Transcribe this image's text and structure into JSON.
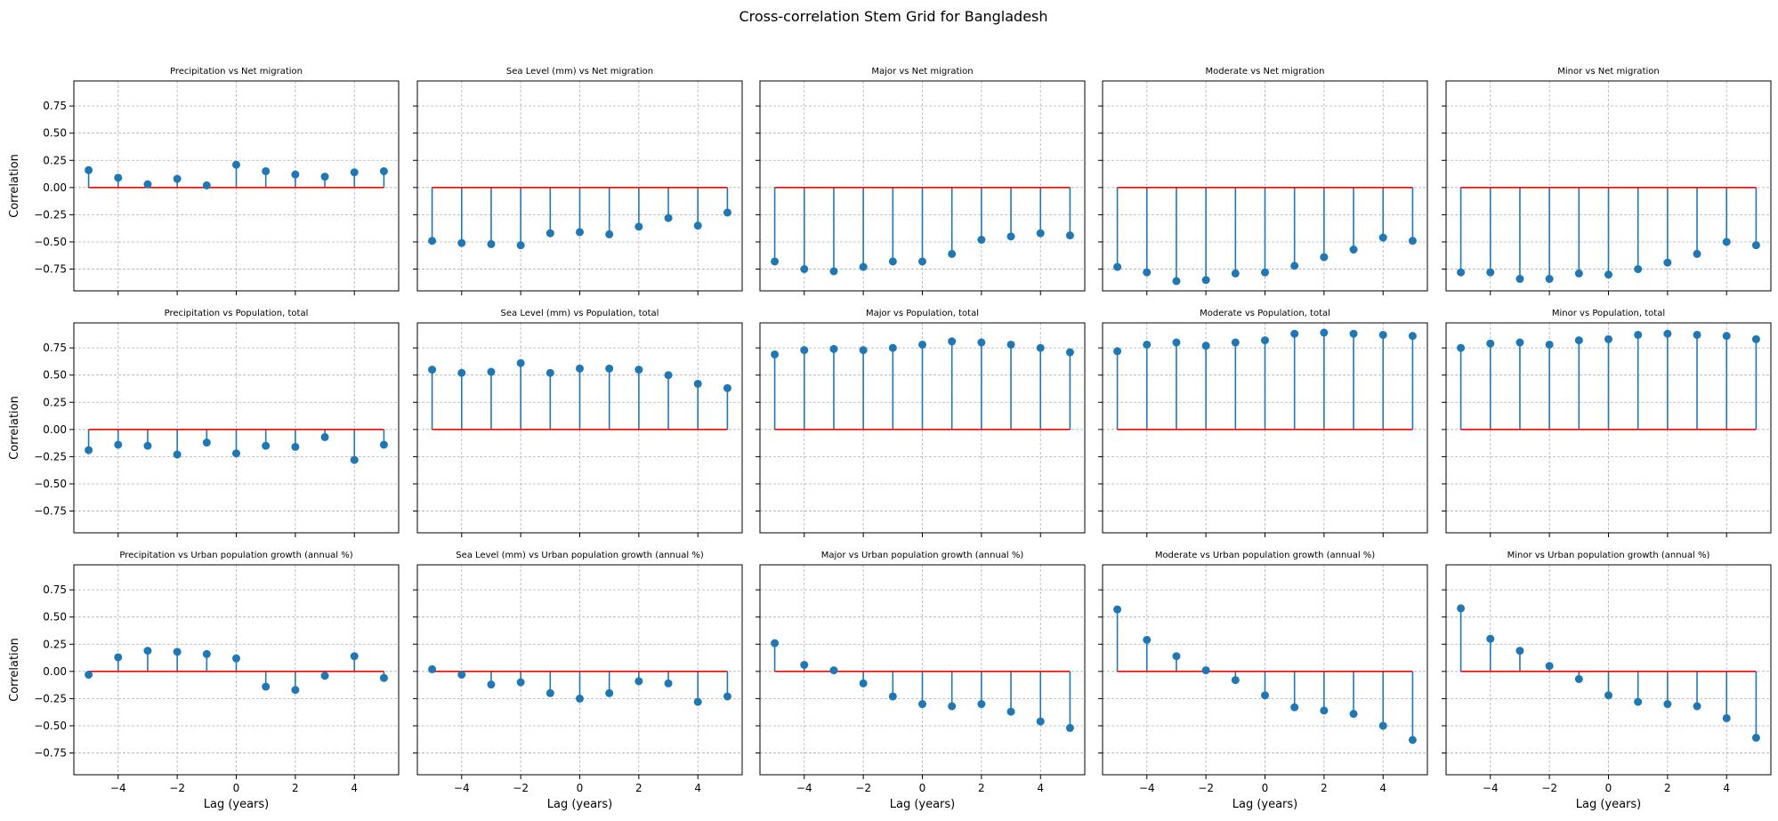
{
  "figure_title": "Cross-correlation Stem Grid for Bangladesh",
  "colors": {
    "stem": "#1f77b4",
    "baseline": "#ff0000",
    "grid": "#b0b0b0",
    "axes": "#000000"
  },
  "chart_data": {
    "type": "stem",
    "grid": true,
    "xlabel": "Lag (years)",
    "ylabel": "Correlation",
    "xlim": [
      -5.5,
      5.5
    ],
    "ylim": [
      -0.95,
      0.98
    ],
    "xticks": [
      -4,
      -2,
      0,
      2,
      4
    ],
    "xtick_labels": [
      "−4",
      "−2",
      "0",
      "2",
      "4"
    ],
    "yticks": [
      0.75,
      0.5,
      0.25,
      0.0,
      -0.25,
      -0.5,
      -0.75
    ],
    "ytick_labels": [
      "0.75",
      "0.50",
      "0.25",
      "0.00",
      "−0.25",
      "−0.50",
      "−0.75"
    ],
    "lags": [
      -5,
      -4,
      -3,
      -2,
      -1,
      0,
      1,
      2,
      3,
      4,
      5
    ],
    "panels": [
      {
        "title": "Precipitation vs Net migration",
        "values": [
          0.16,
          0.09,
          0.03,
          0.08,
          0.02,
          0.21,
          0.15,
          0.12,
          0.1,
          0.14,
          0.15
        ]
      },
      {
        "title": "Sea Level (mm) vs Net migration",
        "values": [
          -0.49,
          -0.51,
          -0.52,
          -0.53,
          -0.42,
          -0.41,
          -0.43,
          -0.36,
          -0.28,
          -0.35,
          -0.23
        ]
      },
      {
        "title": "Major vs Net migration",
        "values": [
          -0.68,
          -0.75,
          -0.77,
          -0.73,
          -0.68,
          -0.68,
          -0.61,
          -0.48,
          -0.45,
          -0.42,
          -0.44
        ]
      },
      {
        "title": "Moderate vs Net migration",
        "values": [
          -0.73,
          -0.78,
          -0.86,
          -0.85,
          -0.79,
          -0.78,
          -0.72,
          -0.64,
          -0.57,
          -0.46,
          -0.49
        ]
      },
      {
        "title": "Minor vs Net migration",
        "values": [
          -0.78,
          -0.78,
          -0.84,
          -0.84,
          -0.79,
          -0.8,
          -0.75,
          -0.69,
          -0.61,
          -0.5,
          -0.53
        ]
      },
      {
        "title": "Precipitation vs Population, total",
        "values": [
          -0.19,
          -0.14,
          -0.15,
          -0.23,
          -0.12,
          -0.22,
          -0.15,
          -0.16,
          -0.07,
          -0.28,
          -0.14
        ]
      },
      {
        "title": "Sea Level (mm) vs Population, total",
        "values": [
          0.55,
          0.52,
          0.53,
          0.61,
          0.52,
          0.56,
          0.56,
          0.55,
          0.5,
          0.42,
          0.38
        ]
      },
      {
        "title": "Major vs Population, total",
        "values": [
          0.69,
          0.73,
          0.74,
          0.73,
          0.75,
          0.78,
          0.81,
          0.8,
          0.78,
          0.75,
          0.71
        ]
      },
      {
        "title": "Moderate vs Population, total",
        "values": [
          0.72,
          0.78,
          0.8,
          0.77,
          0.8,
          0.82,
          0.88,
          0.89,
          0.88,
          0.87,
          0.86
        ]
      },
      {
        "title": "Minor vs Population, total",
        "values": [
          0.75,
          0.79,
          0.8,
          0.78,
          0.82,
          0.83,
          0.87,
          0.88,
          0.87,
          0.86,
          0.83
        ]
      },
      {
        "title": "Precipitation vs Urban population growth (annual %)",
        "values": [
          -0.03,
          0.13,
          0.19,
          0.18,
          0.16,
          0.12,
          -0.14,
          -0.17,
          -0.04,
          0.14,
          -0.06
        ]
      },
      {
        "title": "Sea Level (mm) vs Urban population growth (annual %)",
        "values": [
          0.02,
          -0.03,
          -0.12,
          -0.1,
          -0.2,
          -0.25,
          -0.2,
          -0.09,
          -0.11,
          -0.28,
          -0.23
        ]
      },
      {
        "title": "Major vs Urban population growth (annual %)",
        "values": [
          0.26,
          0.06,
          0.01,
          -0.11,
          -0.23,
          -0.3,
          -0.32,
          -0.3,
          -0.37,
          -0.46,
          -0.52
        ]
      },
      {
        "title": "Moderate vs Urban population growth (annual %)",
        "values": [
          0.57,
          0.29,
          0.14,
          0.01,
          -0.08,
          -0.22,
          -0.33,
          -0.36,
          -0.39,
          -0.5,
          -0.63
        ]
      },
      {
        "title": "Minor vs Urban population growth (annual %)",
        "values": [
          0.58,
          0.3,
          0.19,
          0.05,
          -0.07,
          -0.22,
          -0.28,
          -0.3,
          -0.32,
          -0.43,
          -0.61
        ]
      }
    ]
  }
}
